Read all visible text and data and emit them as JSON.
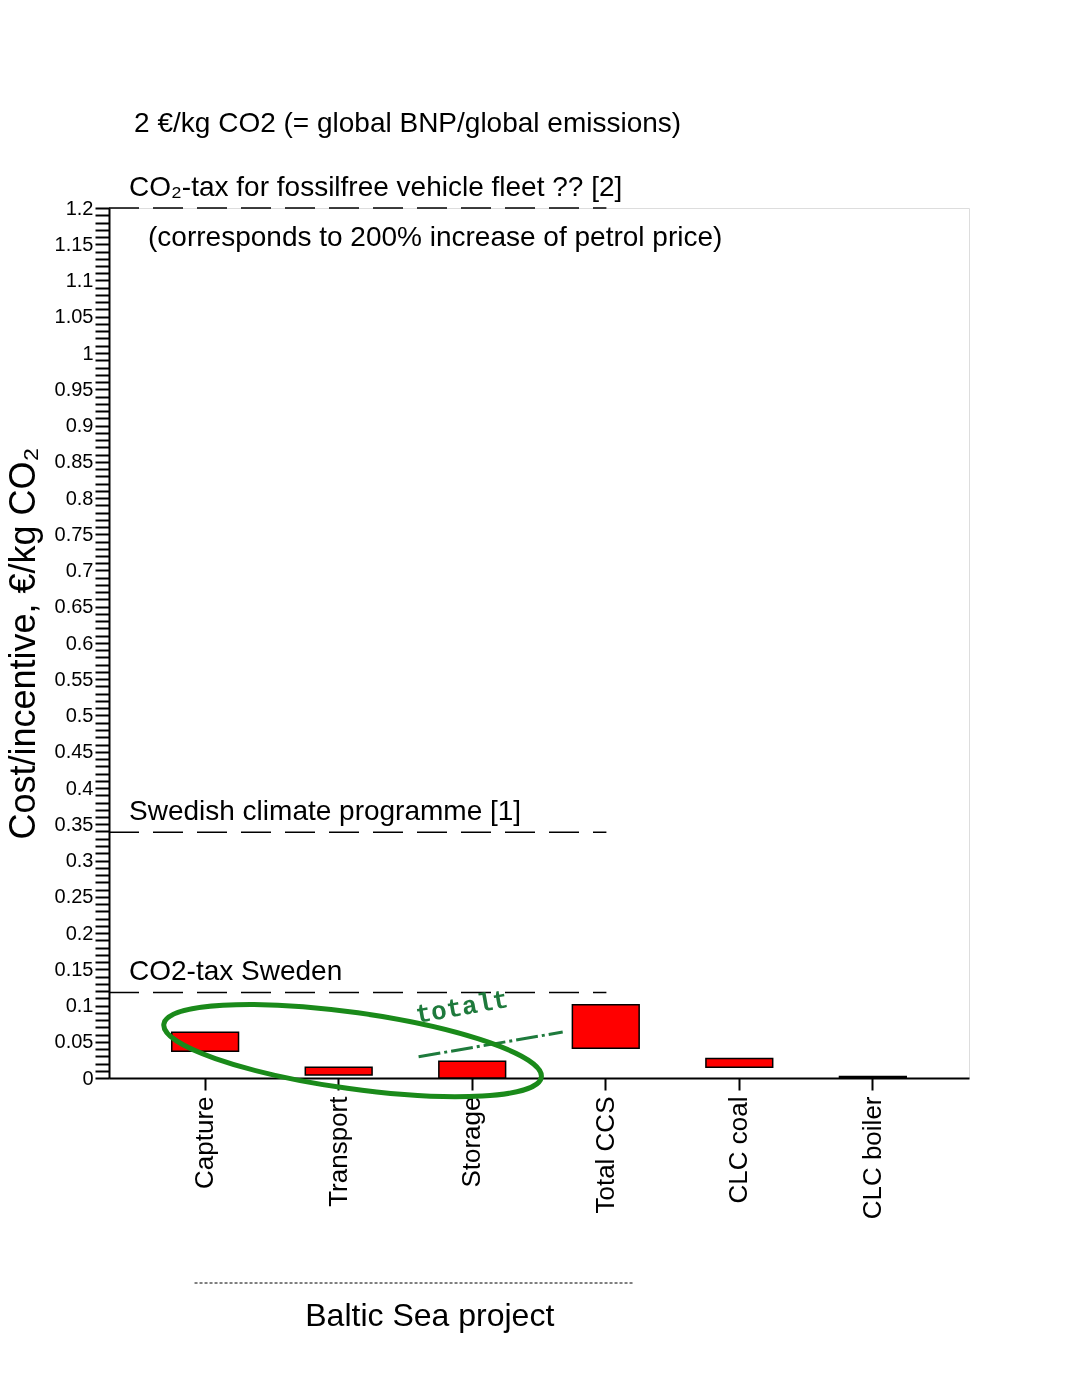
{
  "chart_data": {
    "type": "bar",
    "ylabel": "Cost/incentive, €/kg CO₂",
    "categories": [
      "Capture",
      "Transport",
      "Storage",
      "Total CCS",
      "CLC coal",
      "CLC boiler"
    ],
    "values": [
      0.026,
      0.011,
      0.023,
      0.06,
      0.012,
      0.002
    ],
    "base": [
      0.037,
      0.004,
      0,
      0.041,
      0.015,
      0
    ],
    "color": "#ff0000",
    "ylim": [
      0,
      1.2
    ],
    "yticks": [
      0,
      {
        "value": 0.01,
        "label": null
      },
      {
        "value": 0.02,
        "label": null
      },
      {
        "value": 0.03,
        "label": null
      },
      {
        "value": 0.04,
        "label": null
      },
      0.05,
      {
        "value": 0.06,
        "label": null
      },
      {
        "value": 0.07,
        "label": null
      },
      {
        "value": 0.08,
        "label": null
      },
      {
        "value": 0.09,
        "label": null
      },
      0.1,
      {
        "value": 0.11,
        "label": null
      },
      {
        "value": 0.12,
        "label": null
      },
      {
        "value": 0.13,
        "label": null
      },
      {
        "value": 0.14,
        "label": null
      },
      0.15,
      {
        "value": 0.16,
        "label": null
      },
      {
        "value": 0.17,
        "label": null
      },
      {
        "value": 0.18,
        "label": null
      },
      {
        "value": 0.19,
        "label": null
      },
      0.2,
      {
        "value": 0.21,
        "label": null
      },
      {
        "value": 0.22,
        "label": null
      },
      {
        "value": 0.23,
        "label": null
      },
      {
        "value": 0.24,
        "label": null
      },
      0.25,
      {
        "value": 0.26,
        "label": null
      },
      {
        "value": 0.27,
        "label": null
      },
      {
        "value": 0.28,
        "label": null
      },
      {
        "value": 0.29,
        "label": null
      },
      0.3,
      {
        "value": 0.31,
        "label": null
      },
      {
        "value": 0.32,
        "label": null
      },
      {
        "value": 0.33,
        "label": null
      },
      {
        "value": 0.34,
        "label": null
      },
      0.35,
      {
        "value": 0.36,
        "label": null
      },
      {
        "value": 0.37,
        "label": null
      },
      {
        "value": 0.38,
        "label": null
      },
      {
        "value": 0.39,
        "label": null
      },
      0.4,
      {
        "value": 0.41,
        "label": null
      },
      {
        "value": 0.42,
        "label": null
      },
      {
        "value": 0.43,
        "label": null
      },
      {
        "value": 0.44,
        "label": null
      },
      0.45,
      {
        "value": 0.46,
        "label": null
      },
      {
        "value": 0.47,
        "label": null
      },
      {
        "value": 0.48,
        "label": null
      },
      {
        "value": 0.49,
        "label": null
      },
      0.5,
      {
        "value": 0.51,
        "label": null
      },
      {
        "value": 0.52,
        "label": null
      },
      {
        "value": 0.53,
        "label": null
      },
      {
        "value": 0.54,
        "label": null
      },
      0.55,
      {
        "value": 0.56,
        "label": null
      },
      {
        "value": 0.57,
        "label": null
      },
      {
        "value": 0.58,
        "label": null
      },
      {
        "value": 0.59,
        "label": null
      },
      0.6,
      {
        "value": 0.61,
        "label": null
      },
      {
        "value": 0.62,
        "label": null
      },
      {
        "value": 0.63,
        "label": null
      },
      {
        "value": 0.64,
        "label": null
      },
      0.65,
      {
        "value": 0.66,
        "label": null
      },
      {
        "value": 0.67,
        "label": null
      },
      {
        "value": 0.68,
        "label": null
      },
      {
        "value": 0.69,
        "label": null
      },
      0.7,
      {
        "value": 0.71,
        "label": null
      },
      {
        "value": 0.72,
        "label": null
      },
      {
        "value": 0.73,
        "label": null
      },
      {
        "value": 0.74,
        "label": null
      },
      0.75,
      {
        "value": 0.76,
        "label": null
      },
      {
        "value": 0.77,
        "label": null
      },
      {
        "value": 0.78,
        "label": null
      },
      {
        "value": 0.79,
        "label": null
      },
      0.8,
      {
        "value": 0.81,
        "label": null
      },
      {
        "value": 0.82,
        "label": null
      },
      {
        "value": 0.83,
        "label": null
      },
      {
        "value": 0.84,
        "label": null
      },
      0.85,
      {
        "value": 0.86,
        "label": null
      },
      {
        "value": 0.87,
        "label": null
      },
      {
        "value": 0.88,
        "label": null
      },
      {
        "value": 0.89,
        "label": null
      },
      0.9,
      {
        "value": 0.91,
        "label": null
      },
      {
        "value": 0.92,
        "label": null
      },
      {
        "value": 0.93,
        "label": null
      },
      {
        "value": 0.94,
        "label": null
      },
      0.95,
      {
        "value": 0.96,
        "label": null
      },
      {
        "value": 0.97,
        "label": null
      },
      {
        "value": 0.98,
        "label": null
      },
      {
        "value": 0.99,
        "label": null
      },
      1,
      {
        "value": 1.01,
        "label": null
      },
      {
        "value": 1.02,
        "label": null
      },
      {
        "value": 1.03,
        "label": null
      },
      {
        "value": 1.04,
        "label": null
      },
      1.05,
      {
        "value": 1.06,
        "label": null
      },
      {
        "value": 1.07,
        "label": null
      },
      {
        "value": 1.08,
        "label": null
      },
      {
        "value": 1.09,
        "label": null
      },
      1.1,
      {
        "value": 1.11,
        "label": null
      },
      {
        "value": 1.12,
        "label": null
      },
      {
        "value": 1.13,
        "label": null
      },
      {
        "value": 1.14,
        "label": null
      },
      1.15,
      {
        "value": 1.16,
        "label": null
      },
      {
        "value": 1.17,
        "label": null
      },
      {
        "value": 1.18,
        "label": null
      },
      {
        "value": 1.19,
        "label": null
      },
      1.2
    ],
    "ref_lines": [
      {
        "axis": "y",
        "value": 1.2,
        "label": "CO₂-tax for fossilfree vehicle fleet ?? [2]",
        "line_style": "dashed"
      },
      {
        "axis": "y",
        "value": 0.339,
        "label": "Swedish climate programme [1]",
        "line_style": "dashed"
      },
      {
        "axis": "y",
        "value": 0.118,
        "label": "CO2-tax Sweden",
        "line_style": "dashed"
      }
    ],
    "annotations": [
      "2 €/kg CO2 (= global BNP/global emissions)",
      "(corresponds to 200% increase of petrol price)",
      "totalt",
      "Baltic Sea project"
    ],
    "grid": false
  }
}
